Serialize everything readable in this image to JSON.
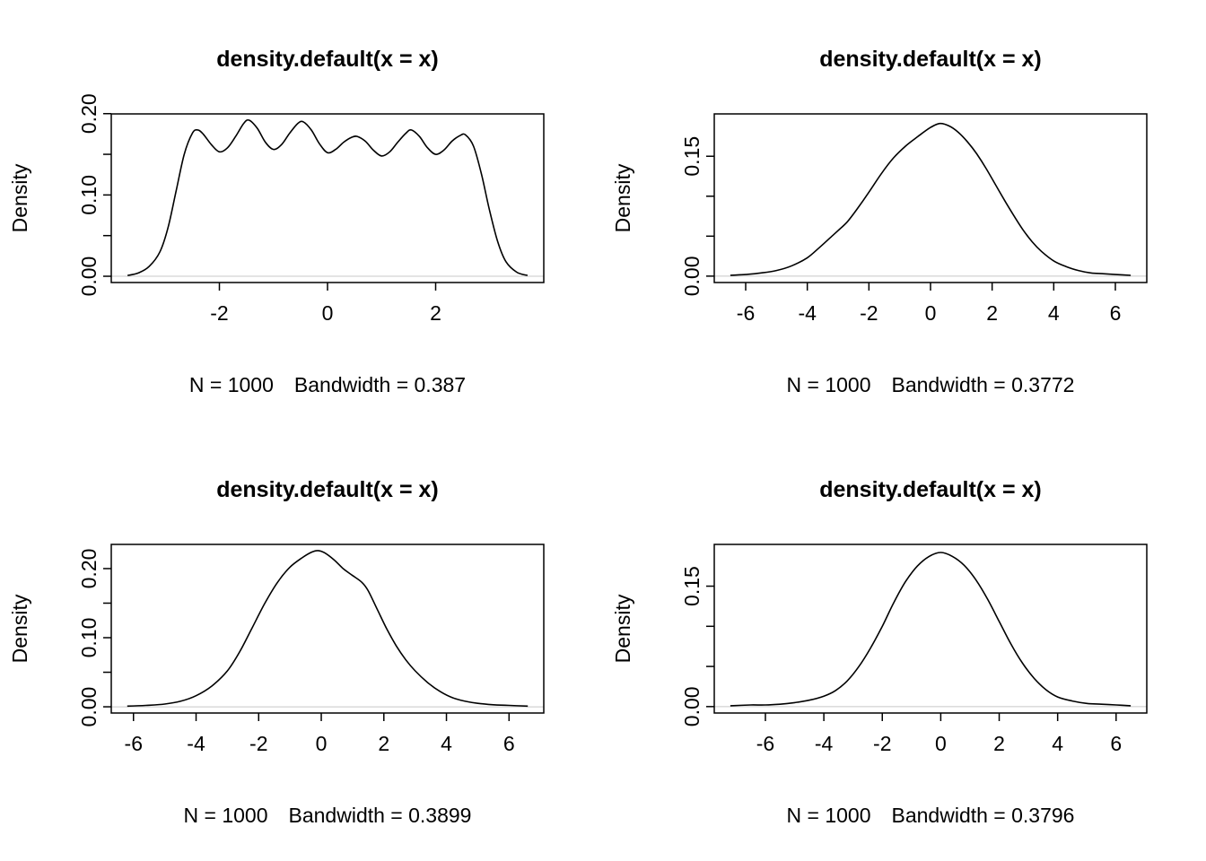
{
  "page": {
    "background": "#ffffff",
    "curve_color": "#000000",
    "axis_color": "#000000",
    "zero_line_color": "#c8c8c8"
  },
  "chart_data": [
    {
      "type": "line",
      "title": "density.default(x = x)",
      "ylabel": "Density",
      "xlabel": "N = 1000   Bandwidth = 0.387",
      "n": 1000,
      "bandwidth": 0.387,
      "xlim": [
        -4.0,
        4.0
      ],
      "ylim": [
        -0.0077,
        0.1997
      ],
      "x_ticks": [
        -2,
        0,
        2
      ],
      "x_tick_labels": [
        "-2",
        "0",
        "2"
      ],
      "y_ticks": [
        0,
        0.05,
        0.1,
        0.15,
        0.2
      ],
      "y_tick_labels": [
        "0.00",
        "",
        "0.10",
        "",
        "0.20"
      ],
      "points": [
        [
          -3.7,
          0.001
        ],
        [
          -3.5,
          0.004
        ],
        [
          -3.3,
          0.012
        ],
        [
          -3.1,
          0.03
        ],
        [
          -2.95,
          0.06
        ],
        [
          -2.8,
          0.105
        ],
        [
          -2.65,
          0.15
        ],
        [
          -2.5,
          0.176
        ],
        [
          -2.4,
          0.18
        ],
        [
          -2.3,
          0.175
        ],
        [
          -2.15,
          0.162
        ],
        [
          -2.0,
          0.153
        ],
        [
          -1.85,
          0.158
        ],
        [
          -1.7,
          0.172
        ],
        [
          -1.55,
          0.188
        ],
        [
          -1.45,
          0.192
        ],
        [
          -1.3,
          0.182
        ],
        [
          -1.15,
          0.165
        ],
        [
          -1.0,
          0.156
        ],
        [
          -0.85,
          0.162
        ],
        [
          -0.7,
          0.176
        ],
        [
          -0.55,
          0.188
        ],
        [
          -0.45,
          0.19
        ],
        [
          -0.3,
          0.18
        ],
        [
          -0.15,
          0.163
        ],
        [
          0.0,
          0.152
        ],
        [
          0.15,
          0.156
        ],
        [
          0.3,
          0.165
        ],
        [
          0.45,
          0.171
        ],
        [
          0.55,
          0.172
        ],
        [
          0.7,
          0.166
        ],
        [
          0.85,
          0.155
        ],
        [
          1.0,
          0.148
        ],
        [
          1.15,
          0.153
        ],
        [
          1.3,
          0.165
        ],
        [
          1.45,
          0.176
        ],
        [
          1.55,
          0.18
        ],
        [
          1.7,
          0.172
        ],
        [
          1.85,
          0.158
        ],
        [
          2.0,
          0.15
        ],
        [
          2.15,
          0.155
        ],
        [
          2.3,
          0.166
        ],
        [
          2.45,
          0.173
        ],
        [
          2.55,
          0.174
        ],
        [
          2.7,
          0.16
        ],
        [
          2.85,
          0.125
        ],
        [
          3.0,
          0.08
        ],
        [
          3.15,
          0.042
        ],
        [
          3.3,
          0.018
        ],
        [
          3.5,
          0.005
        ],
        [
          3.7,
          0.001
        ]
      ]
    },
    {
      "type": "line",
      "title": "density.default(x = x)",
      "ylabel": "Density",
      "xlabel": "N = 1000   Bandwidth = 0.3772",
      "n": 1000,
      "bandwidth": 0.3772,
      "xlim": [
        -7.02,
        7.02
      ],
      "ylim": [
        -0.008,
        0.203
      ],
      "x_ticks": [
        -6,
        -4,
        -2,
        0,
        2,
        4,
        6
      ],
      "x_tick_labels": [
        "-6",
        "-4",
        "-2",
        "0",
        "2",
        "4",
        "6"
      ],
      "y_ticks": [
        0,
        0.05,
        0.1,
        0.15
      ],
      "y_tick_labels": [
        "0.00",
        "",
        "",
        "0.15"
      ],
      "points": [
        [
          -6.5,
          0.001
        ],
        [
          -6.0,
          0.002
        ],
        [
          -5.5,
          0.004
        ],
        [
          -5.0,
          0.007
        ],
        [
          -4.5,
          0.013
        ],
        [
          -4.0,
          0.023
        ],
        [
          -3.6,
          0.036
        ],
        [
          -3.2,
          0.05
        ],
        [
          -3.0,
          0.057
        ],
        [
          -2.7,
          0.068
        ],
        [
          -2.4,
          0.083
        ],
        [
          -2.0,
          0.105
        ],
        [
          -1.6,
          0.128
        ],
        [
          -1.2,
          0.148
        ],
        [
          -0.8,
          0.163
        ],
        [
          -0.4,
          0.175
        ],
        [
          0.0,
          0.186
        ],
        [
          0.3,
          0.191
        ],
        [
          0.6,
          0.188
        ],
        [
          0.9,
          0.18
        ],
        [
          1.2,
          0.168
        ],
        [
          1.5,
          0.153
        ],
        [
          1.8,
          0.135
        ],
        [
          2.1,
          0.115
        ],
        [
          2.4,
          0.095
        ],
        [
          2.7,
          0.076
        ],
        [
          3.0,
          0.058
        ],
        [
          3.3,
          0.043
        ],
        [
          3.6,
          0.031
        ],
        [
          4.0,
          0.019
        ],
        [
          4.4,
          0.012
        ],
        [
          4.8,
          0.007
        ],
        [
          5.2,
          0.004
        ],
        [
          5.6,
          0.003
        ],
        [
          6.0,
          0.002
        ],
        [
          6.5,
          0.001
        ]
      ]
    },
    {
      "type": "line",
      "title": "density.default(x = x)",
      "ylabel": "Density",
      "xlabel": "N = 1000   Bandwidth = 0.3899",
      "n": 1000,
      "bandwidth": 0.3899,
      "xlim": [
        -6.71,
        7.11
      ],
      "ylim": [
        -0.009,
        0.235
      ],
      "x_ticks": [
        -6,
        -4,
        -2,
        0,
        2,
        4,
        6
      ],
      "x_tick_labels": [
        "-6",
        "-4",
        "-2",
        "0",
        "2",
        "4",
        "6"
      ],
      "y_ticks": [
        0,
        0.05,
        0.1,
        0.15,
        0.2
      ],
      "y_tick_labels": [
        "0.00",
        "",
        "0.10",
        "",
        "0.20"
      ],
      "points": [
        [
          -6.2,
          0.001
        ],
        [
          -5.6,
          0.002
        ],
        [
          -5.0,
          0.004
        ],
        [
          -4.5,
          0.008
        ],
        [
          -4.0,
          0.016
        ],
        [
          -3.5,
          0.03
        ],
        [
          -3.0,
          0.052
        ],
        [
          -2.6,
          0.08
        ],
        [
          -2.2,
          0.115
        ],
        [
          -1.8,
          0.15
        ],
        [
          -1.4,
          0.18
        ],
        [
          -1.0,
          0.202
        ],
        [
          -0.6,
          0.216
        ],
        [
          -0.3,
          0.224
        ],
        [
          -0.1,
          0.226
        ],
        [
          0.1,
          0.223
        ],
        [
          0.4,
          0.213
        ],
        [
          0.7,
          0.2
        ],
        [
          1.0,
          0.19
        ],
        [
          1.3,
          0.18
        ],
        [
          1.5,
          0.168
        ],
        [
          1.8,
          0.14
        ],
        [
          2.1,
          0.112
        ],
        [
          2.4,
          0.088
        ],
        [
          2.7,
          0.068
        ],
        [
          3.0,
          0.052
        ],
        [
          3.4,
          0.035
        ],
        [
          3.8,
          0.022
        ],
        [
          4.2,
          0.013
        ],
        [
          4.6,
          0.008
        ],
        [
          5.0,
          0.005
        ],
        [
          5.5,
          0.003
        ],
        [
          6.0,
          0.002
        ],
        [
          6.6,
          0.001
        ]
      ]
    },
    {
      "type": "line",
      "title": "density.default(x = x)",
      "ylabel": "Density",
      "xlabel": "N = 1000   Bandwidth = 0.3796",
      "n": 1000,
      "bandwidth": 0.3796,
      "xlim": [
        -7.75,
        7.05
      ],
      "ylim": [
        -0.008,
        0.202
      ],
      "x_ticks": [
        -6,
        -4,
        -2,
        0,
        2,
        4,
        6
      ],
      "x_tick_labels": [
        "-6",
        "-4",
        "-2",
        "0",
        "2",
        "4",
        "6"
      ],
      "y_ticks": [
        0,
        0.05,
        0.1,
        0.15
      ],
      "y_tick_labels": [
        "0.00",
        "",
        "",
        "0.15"
      ],
      "points": [
        [
          -7.2,
          0.001
        ],
        [
          -6.5,
          0.002
        ],
        [
          -6.0,
          0.002
        ],
        [
          -5.5,
          0.003
        ],
        [
          -5.0,
          0.005
        ],
        [
          -4.5,
          0.008
        ],
        [
          -4.0,
          0.013
        ],
        [
          -3.6,
          0.02
        ],
        [
          -3.2,
          0.032
        ],
        [
          -2.8,
          0.05
        ],
        [
          -2.4,
          0.073
        ],
        [
          -2.0,
          0.1
        ],
        [
          -1.6,
          0.13
        ],
        [
          -1.2,
          0.156
        ],
        [
          -0.8,
          0.175
        ],
        [
          -0.4,
          0.187
        ],
        [
          0.0,
          0.192
        ],
        [
          0.4,
          0.187
        ],
        [
          0.8,
          0.176
        ],
        [
          1.2,
          0.158
        ],
        [
          1.6,
          0.134
        ],
        [
          2.0,
          0.106
        ],
        [
          2.4,
          0.078
        ],
        [
          2.8,
          0.054
        ],
        [
          3.2,
          0.035
        ],
        [
          3.6,
          0.021
        ],
        [
          4.0,
          0.012
        ],
        [
          4.5,
          0.007
        ],
        [
          5.0,
          0.004
        ],
        [
          5.5,
          0.003
        ],
        [
          6.0,
          0.002
        ],
        [
          6.5,
          0.001
        ]
      ]
    }
  ]
}
